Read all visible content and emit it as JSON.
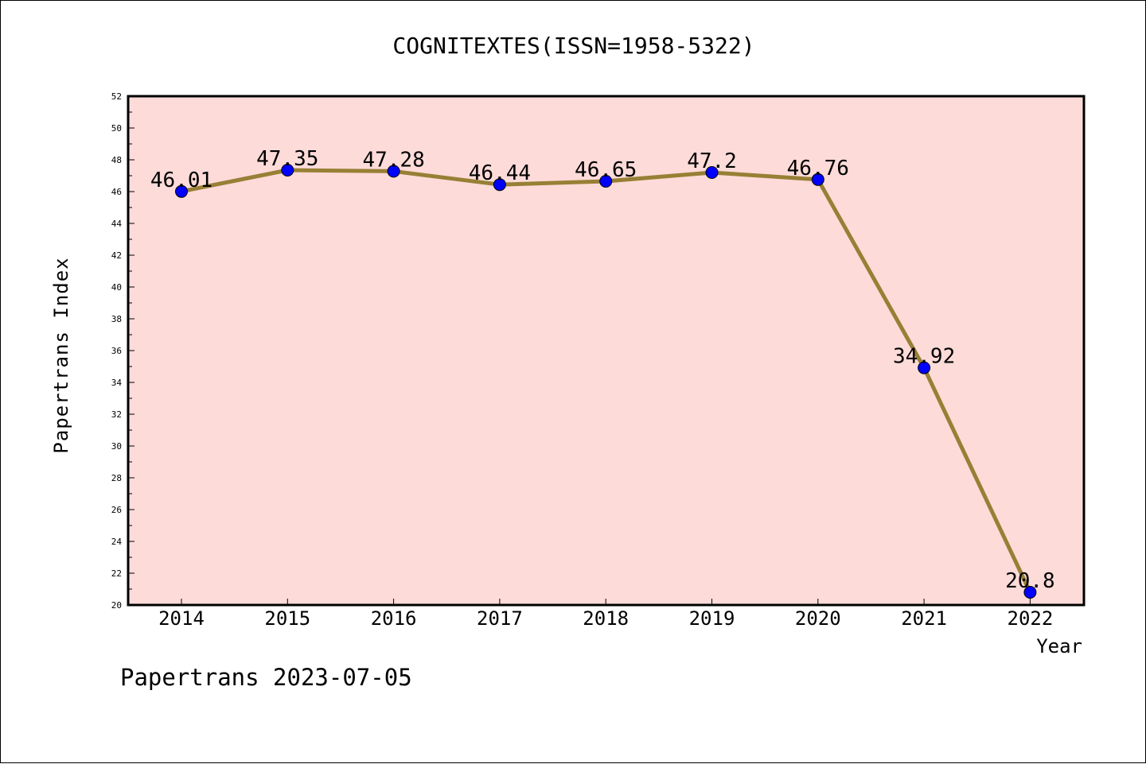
{
  "chart_data": {
    "type": "line",
    "title": "COGNITEXTES(ISSN=1958-5322)",
    "xlabel": "Year",
    "ylabel": "Papertrans Index",
    "categories": [
      "2014",
      "2015",
      "2016",
      "2017",
      "2018",
      "2019",
      "2020",
      "2021",
      "2022"
    ],
    "series": [
      {
        "values": [
          46.01,
          47.35,
          47.28,
          46.44,
          46.65,
          47.2,
          46.76,
          34.92,
          20.8
        ],
        "labels": [
          "46.01",
          "47.35",
          "47.28",
          "46.44",
          "46.65",
          "47.2",
          "46.76",
          "34.92",
          "20.8"
        ]
      }
    ],
    "ylim": [
      20,
      52
    ],
    "yticks": [
      "20",
      "22",
      "24",
      "26",
      "28",
      "30",
      "32",
      "34",
      "36",
      "38",
      "40",
      "42",
      "44",
      "46",
      "48",
      "50",
      "52"
    ],
    "grid": false,
    "legend": "none",
    "colors": {
      "plot_background": "#fddbd9",
      "line": "#978035",
      "marker": "#0000ff",
      "axes": "#000000"
    }
  },
  "footer": {
    "text": "Papertrans 2023-07-05"
  }
}
